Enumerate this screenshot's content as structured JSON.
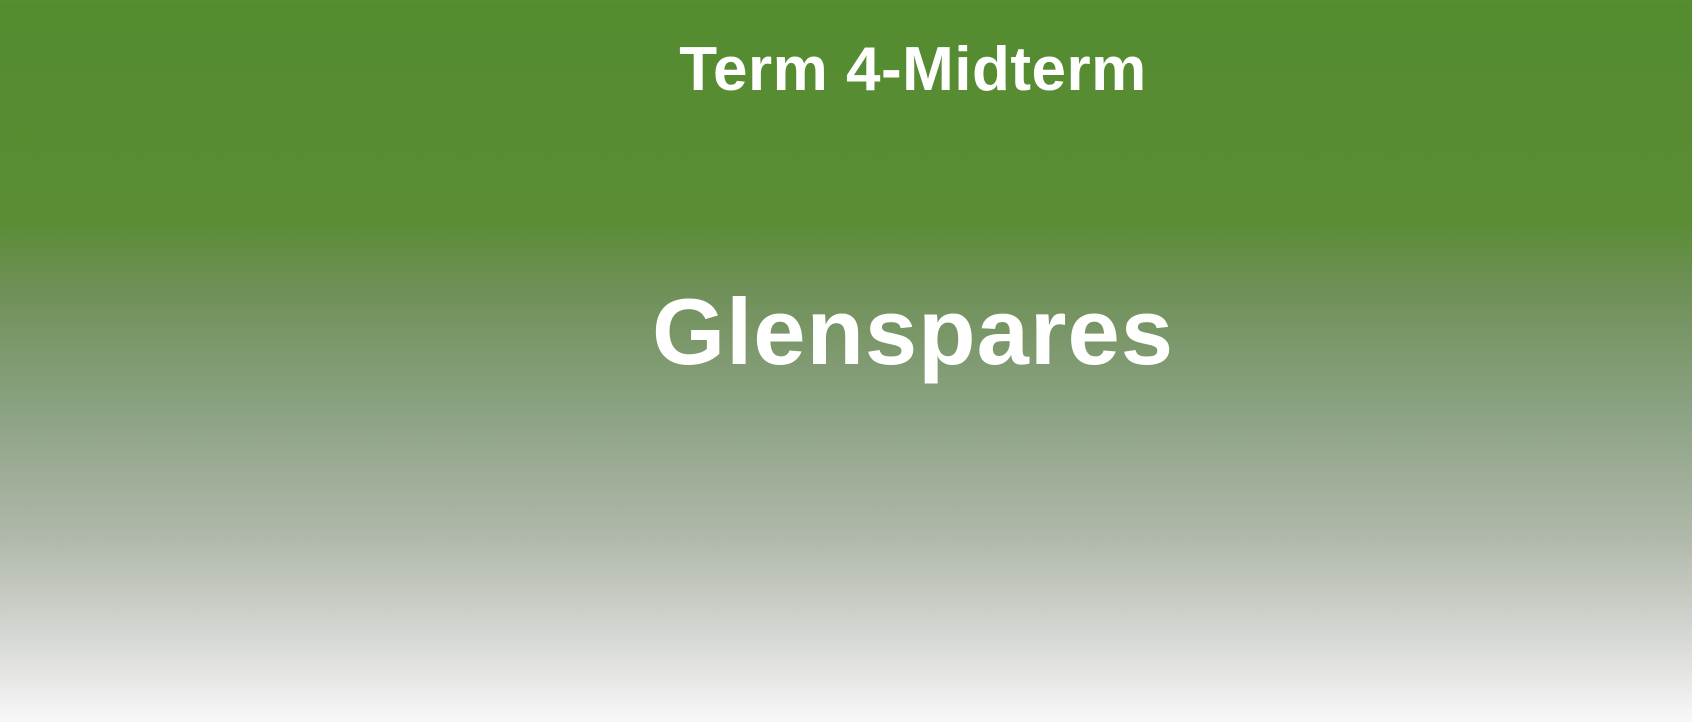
{
  "banner": {
    "title": "Term 4-Midterm",
    "brand": "Glenspares"
  },
  "colors": {
    "top": "#558c30",
    "bottom": "#f8f8f8",
    "text": "#ffffff"
  }
}
